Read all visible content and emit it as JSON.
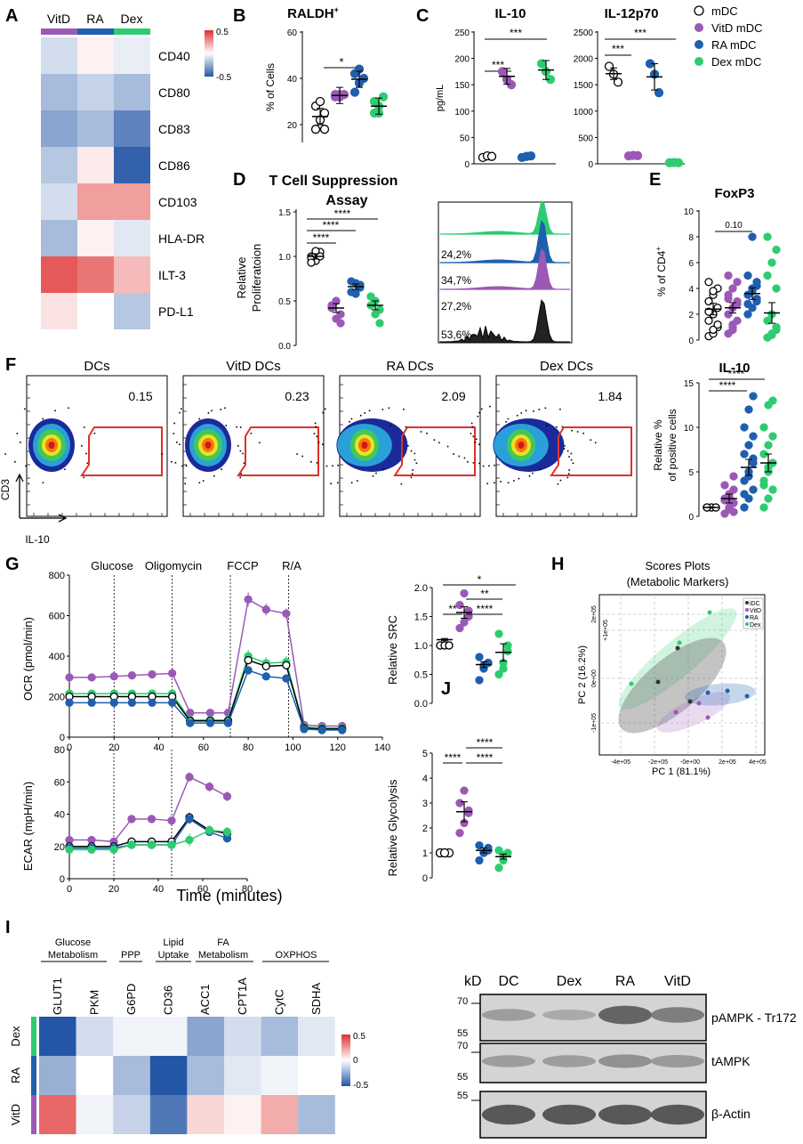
{
  "colors": {
    "mDC": "#ffffff",
    "VitD": "#9b59b6",
    "RA": "#1f5fae",
    "Dex": "#2ecc71",
    "red": "#e03030",
    "blue": "#2456a6"
  },
  "panelA": {
    "letter": "A",
    "cols": [
      "VitD",
      "RA",
      "Dex"
    ],
    "rows": [
      "CD40",
      "CD80",
      "CD83",
      "CD86",
      "CD103",
      "HLA-DR",
      "ILT-3",
      "PD-L1"
    ],
    "values": [
      [
        -0.15,
        0.05,
        -0.08
      ],
      [
        -0.3,
        -0.2,
        -0.3
      ],
      [
        -0.4,
        -0.3,
        -0.55
      ],
      [
        -0.25,
        0.08,
        -0.7
      ],
      [
        -0.15,
        0.35,
        0.35
      ],
      [
        -0.3,
        0.05,
        -0.1
      ],
      [
        0.6,
        0.5,
        0.25
      ],
      [
        0.1,
        0.0,
        -0.25
      ]
    ],
    "scale": {
      "max": "0.5",
      "min": "-0.5"
    }
  },
  "panelB": {
    "letter": "B",
    "title": "RALDH",
    "title_sup": "+",
    "ylabel": "% of Cells",
    "yticks": [
      "20",
      "40",
      "60"
    ],
    "sig": "*"
  },
  "panelC": {
    "letter": "C",
    "il10": {
      "title": "IL-10",
      "ylabel": "pg/mL",
      "yticks": [
        "0",
        "50",
        "100",
        "150",
        "200",
        "250"
      ],
      "sig": [
        "***",
        "***"
      ]
    },
    "il12": {
      "title": "IL-12p70",
      "yticks": [
        "0",
        "500",
        "1000",
        "1500",
        "2000",
        "2500"
      ],
      "sig": [
        "***",
        "***"
      ]
    },
    "legend": [
      "mDC",
      "VitD mDC",
      "RA mDC",
      "Dex mDC"
    ]
  },
  "panelD": {
    "letter": "D",
    "title": "T Cell Suppression",
    "title2": "Assay",
    "ylabel": "Relative",
    "ylabel2": "Proliferatoion",
    "yticks": [
      "0.0",
      "0.5",
      "1.0",
      "1.5"
    ],
    "sig": [
      "****",
      "****",
      "****"
    ],
    "hist": [
      "24,2%",
      "34,7%",
      "27,2%",
      "53,6%"
    ]
  },
  "panelE": {
    "letter": "E",
    "title": "FoxP3",
    "ylabel": "% of CD4",
    "ylabel_sup": "+",
    "yticks": [
      "0",
      "2",
      "4",
      "6",
      "8",
      "10"
    ],
    "sig": "0.10"
  },
  "panelF": {
    "letter": "F",
    "plots": [
      {
        "title": "DCs",
        "value": "0.15"
      },
      {
        "title": "VitD DCs",
        "value": "0.23"
      },
      {
        "title": "RA DCs",
        "value": "2.09"
      },
      {
        "title": "Dex DCs",
        "value": "1.84"
      }
    ],
    "yaxis": "CD3",
    "xaxis": "IL-10",
    "il10": {
      "title": "IL-10",
      "ylabel": "Relative %",
      "ylabel2": "of positive cells",
      "yticks": [
        "0",
        "5",
        "10",
        "15"
      ],
      "sig": [
        "****",
        "****"
      ]
    }
  },
  "panelG": {
    "letter": "G",
    "events": [
      "Glucose",
      "Oligomycin",
      "FCCP",
      "R/A"
    ],
    "ocr": {
      "ylabel": "OCR (pmol/min)",
      "yticks": [
        "0",
        "200",
        "400",
        "600",
        "800"
      ],
      "xticks": [
        "0",
        "20",
        "40",
        "60",
        "80",
        "100",
        "120",
        "140"
      ]
    },
    "ecar": {
      "ylabel": "ECAR (mpH/min)",
      "yticks": [
        "0",
        "20",
        "40",
        "60",
        "80"
      ],
      "xticks": [
        "0",
        "20",
        "40",
        "60",
        "80"
      ],
      "xlabel": "Time (minutes)"
    },
    "src": {
      "ylabel": "Relative SRC",
      "yticks": [
        "0.0",
        "0.5",
        "1.0",
        "1.5",
        "2.0"
      ],
      "sig": [
        "*",
        "**",
        "**",
        "****"
      ]
    },
    "gly": {
      "ylabel": "Relative Glycolysis",
      "yticks": [
        "0",
        "1",
        "2",
        "3",
        "4",
        "5"
      ],
      "sig": [
        "****",
        "****",
        "****"
      ]
    }
  },
  "panelH": {
    "letter": "H",
    "title": "Scores Plots",
    "subtitle": "(Metabolic Markers)",
    "legend": [
      "iDC",
      "VitD",
      "RA",
      "Dex"
    ],
    "xlabel": "PC 1 (81.1%)",
    "ylabel": "PC 2 (16.2%)",
    "xticks": [
      "-4e+05",
      "-2e+05",
      "-0e+00",
      "2e+05",
      "4e+05"
    ],
    "yticks": [
      "2e+05",
      "+1e+05",
      "0e+00",
      "-1e+05"
    ]
  },
  "panelI": {
    "letter": "I",
    "groups": [
      "Glucose",
      "Metabolism",
      "PPP",
      "Lipid",
      "Uptake",
      "FA",
      "Metabolism",
      "OXPHOS"
    ],
    "cols": [
      "GLUT1",
      "PKM",
      "G6PD",
      "CD36",
      "ACC1",
      "CPT1A",
      "CytC",
      "SDHA"
    ],
    "rows": [
      "Dex",
      "RA",
      "VitD"
    ],
    "values": [
      [
        -0.75,
        -0.15,
        -0.05,
        -0.05,
        -0.4,
        -0.15,
        -0.3,
        -0.1
      ],
      [
        -0.35,
        0.0,
        -0.3,
        -0.8,
        -0.3,
        -0.1,
        -0.05,
        0.0
      ],
      [
        0.55,
        -0.05,
        -0.2,
        -0.6,
        0.15,
        0.05,
        0.3,
        -0.3
      ]
    ],
    "scale": {
      "max": "0.5",
      "mid": "0",
      "min": "-0.5"
    }
  },
  "panelJ": {
    "letter": "J",
    "kd": "kD",
    "lanes": [
      "DC",
      "Dex",
      "RA",
      "VitD"
    ],
    "markers": [
      "70",
      "55",
      "70",
      "55",
      "55"
    ],
    "bands": [
      "pAMPK - Tr172",
      "tAMPK",
      "β-Actin"
    ]
  }
}
